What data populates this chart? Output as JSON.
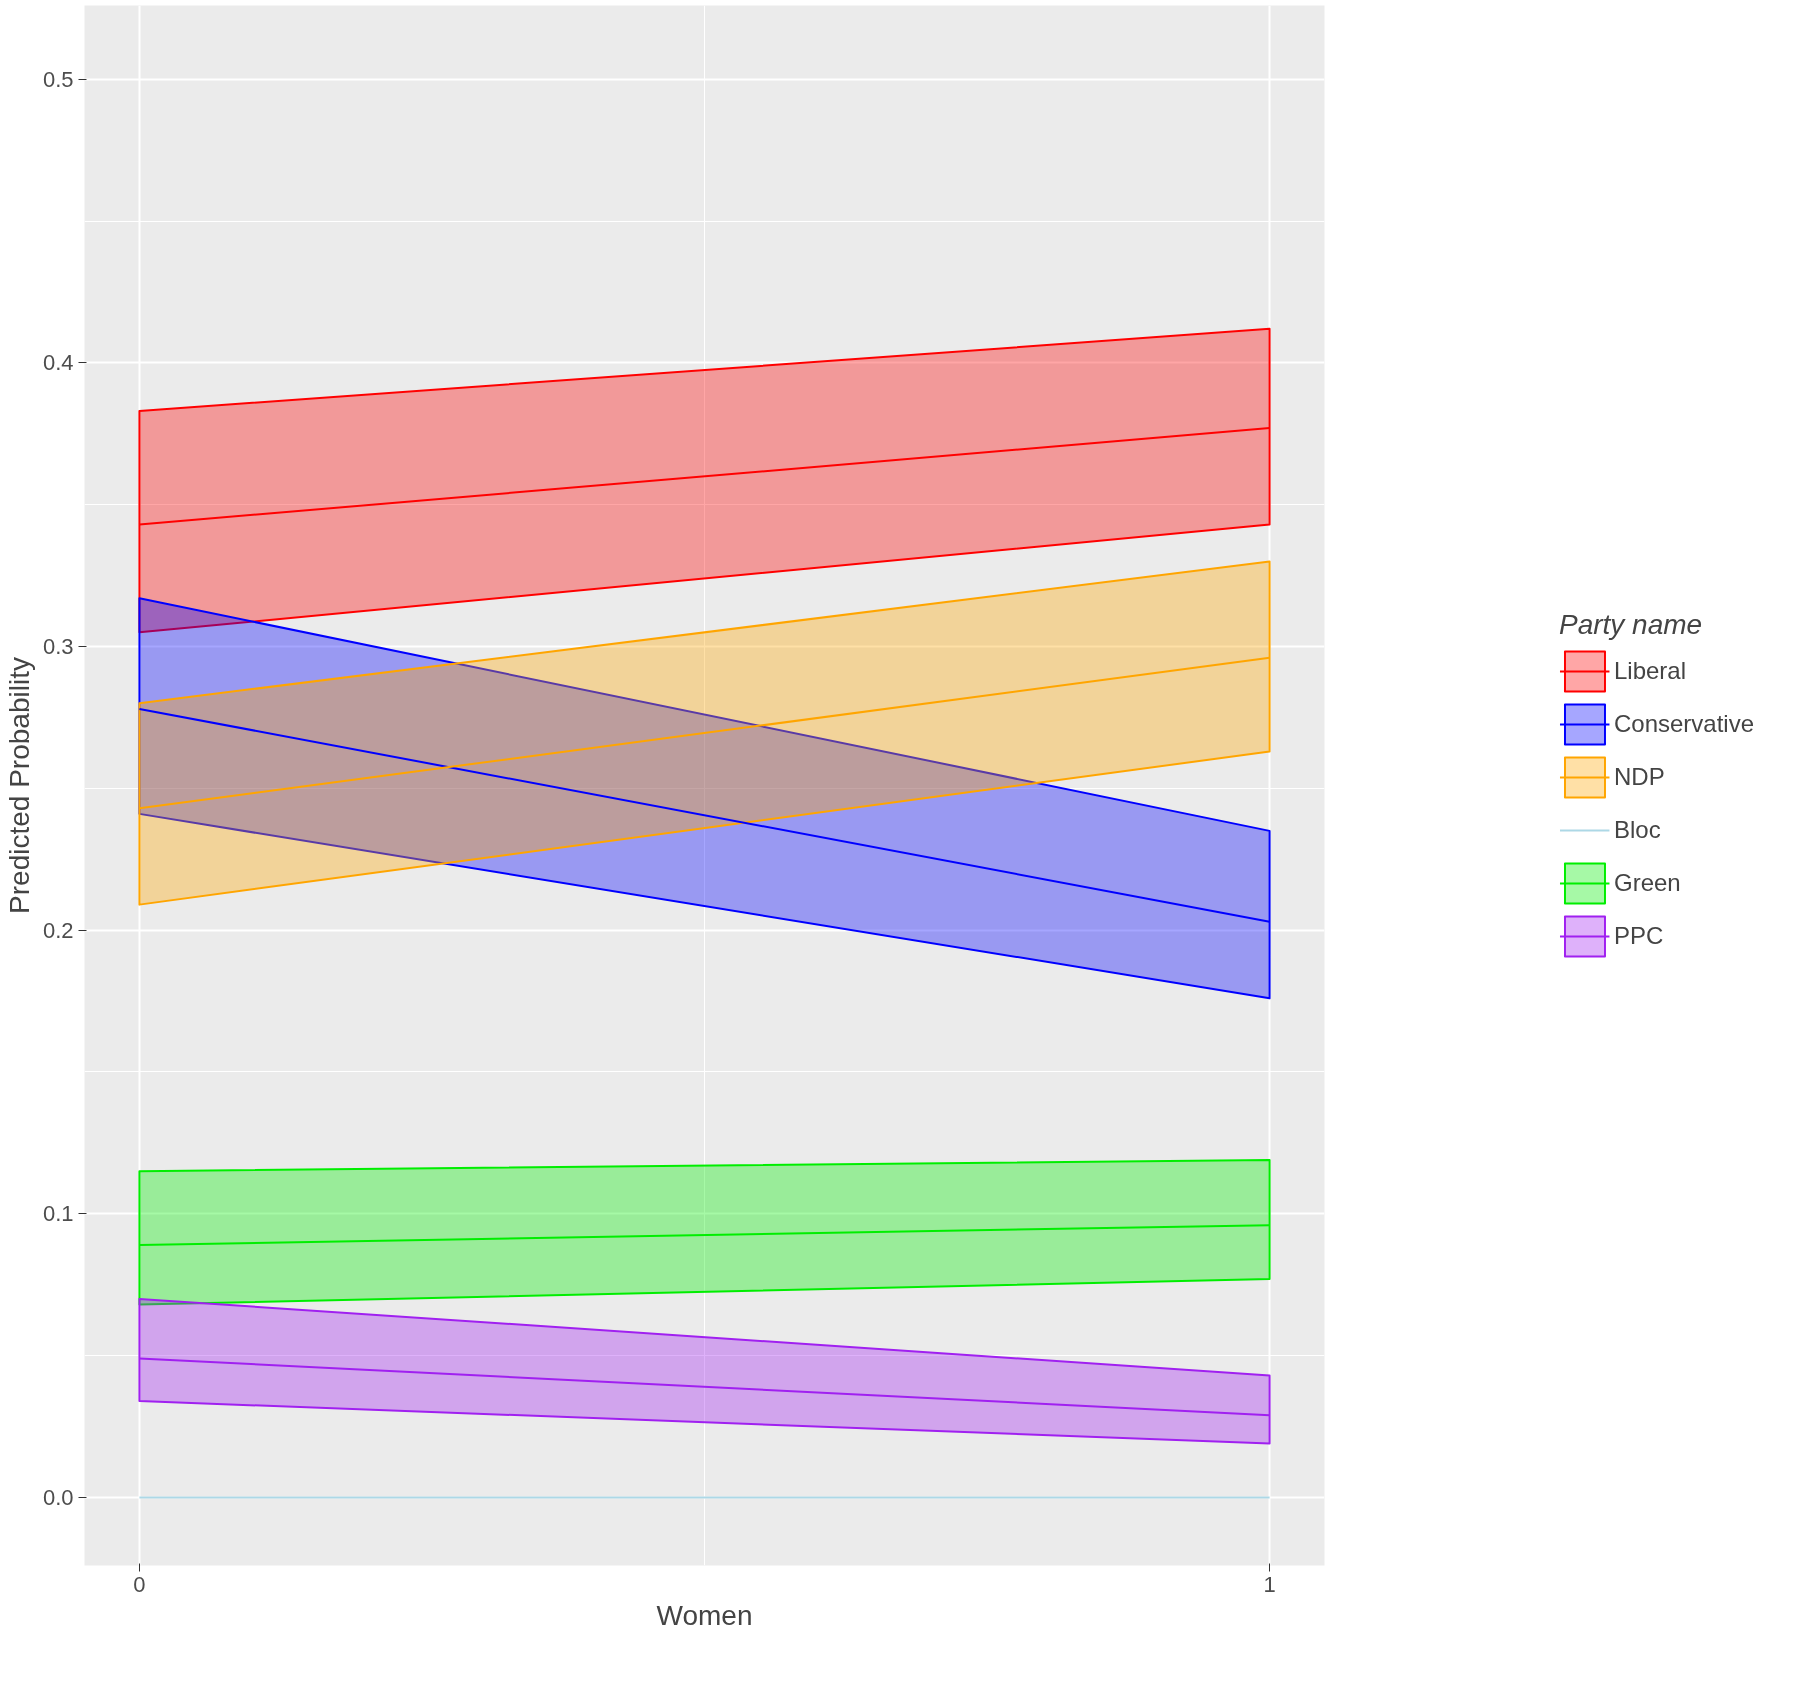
{
  "chart_data": {
    "type": "line",
    "xlabel": "Women",
    "ylabel": "Predicted Probability",
    "legend_title": "Party name",
    "xlim": [
      -0.0486,
      1.0486
    ],
    "ylim": [
      -0.024,
      0.526
    ],
    "xticks": [
      0,
      1
    ],
    "yticks": [
      {
        "value": 0,
        "label": "0.0"
      },
      0.1,
      0.2,
      0.3,
      0.4,
      0.5
    ],
    "grid": true,
    "legend": "right",
    "x": [
      0,
      1
    ],
    "series": [
      {
        "name": "Liberal",
        "color": "#ff0000",
        "values": [
          0.343,
          0.377
        ],
        "lower": [
          0.305,
          0.343
        ],
        "upper": [
          0.383,
          0.412
        ]
      },
      {
        "name": "Conservative",
        "color": "#0000ff",
        "values": [
          0.278,
          0.203
        ],
        "lower": [
          0.241,
          0.176
        ],
        "upper": [
          0.317,
          0.235
        ]
      },
      {
        "name": "NDP",
        "color": "#ffa500",
        "values": [
          0.243,
          0.296
        ],
        "lower": [
          0.209,
          0.263
        ],
        "upper": [
          0.28,
          0.33
        ]
      },
      {
        "name": "Bloc",
        "color": "#add8e6",
        "values": [
          0.0,
          0.0
        ]
      },
      {
        "name": "Green",
        "color": "#00ee00",
        "values": [
          0.089,
          0.096
        ],
        "lower": [
          0.068,
          0.077
        ],
        "upper": [
          0.115,
          0.119
        ]
      },
      {
        "name": "PPC",
        "color": "#a020f0",
        "values": [
          0.049,
          0.029
        ],
        "lower": [
          0.034,
          0.019
        ],
        "upper": [
          0.07,
          0.043
        ]
      }
    ]
  }
}
